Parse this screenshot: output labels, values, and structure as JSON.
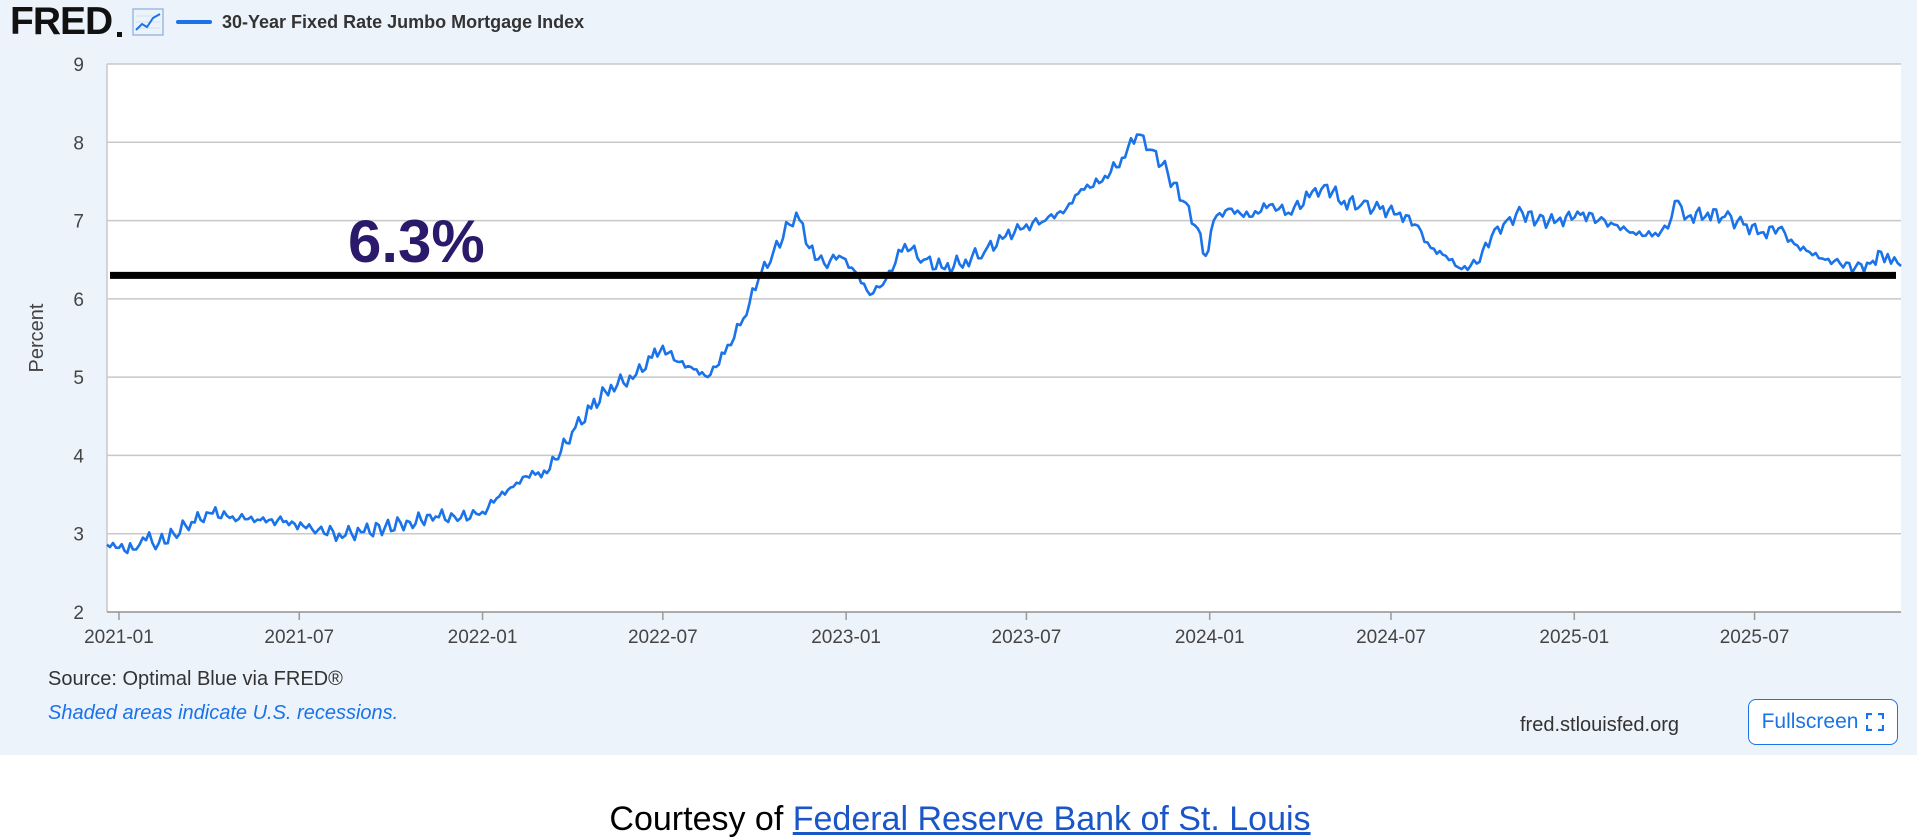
{
  "header": {
    "logo_text": "FRED",
    "series_label": "30-Year Fixed Rate Jumbo Mortgage Index",
    "series_color": "#1a73e8"
  },
  "annotation": {
    "label": "6.3%",
    "label_color": "#2b1a6b",
    "line_color": "#000000",
    "value": 6.3
  },
  "footer": {
    "source": "Source: Optimal Blue via FRED®",
    "recession_note": "Shaded areas indicate U.S. recessions.",
    "url": "fred.stlouisfed.org",
    "fullscreen_label": "Fullscreen"
  },
  "courtesy": {
    "prefix": "Courtesy of ",
    "link_text": "Federal Reserve Bank of St. Louis"
  },
  "chart_data": {
    "type": "line",
    "title": "",
    "ylabel": "Percent",
    "ylim": [
      2,
      9
    ],
    "yticks": [
      2,
      3,
      4,
      5,
      6,
      7,
      8,
      9
    ],
    "xlim": [
      "2020-12-20",
      "2025-11-25"
    ],
    "xticks": [
      "2021-01",
      "2021-07",
      "2022-01",
      "2022-07",
      "2023-01",
      "2023-07",
      "2024-01",
      "2024-07",
      "2025-01",
      "2025-07"
    ],
    "grid": true,
    "series": [
      {
        "name": "30-Year Fixed Rate Jumbo Mortgage Index",
        "color": "#1a73e8",
        "points": [
          [
            "2020-12-20",
            2.86
          ],
          [
            "2021-01-01",
            2.82
          ],
          [
            "2021-01-15",
            2.8
          ],
          [
            "2021-01-25",
            2.95
          ],
          [
            "2021-02-10",
            2.88
          ],
          [
            "2021-02-25",
            3.0
          ],
          [
            "2021-03-15",
            3.15
          ],
          [
            "2021-04-05",
            3.26
          ],
          [
            "2021-04-25",
            3.22
          ],
          [
            "2021-05-20",
            3.18
          ],
          [
            "2021-06-15",
            3.15
          ],
          [
            "2021-07-05",
            3.1
          ],
          [
            "2021-07-20",
            3.05
          ],
          [
            "2021-08-10",
            3.0
          ],
          [
            "2021-09-01",
            3.02
          ],
          [
            "2021-09-25",
            3.08
          ],
          [
            "2021-10-20",
            3.15
          ],
          [
            "2021-11-15",
            3.22
          ],
          [
            "2021-12-10",
            3.2
          ],
          [
            "2022-01-01",
            3.28
          ],
          [
            "2022-01-15",
            3.45
          ],
          [
            "2022-02-01",
            3.6
          ],
          [
            "2022-02-20",
            3.8
          ],
          [
            "2022-03-01",
            3.72
          ],
          [
            "2022-03-15",
            3.95
          ],
          [
            "2022-04-01",
            4.3
          ],
          [
            "2022-04-20",
            4.6
          ],
          [
            "2022-05-10",
            4.9
          ],
          [
            "2022-06-01",
            4.98
          ],
          [
            "2022-06-20",
            5.25
          ],
          [
            "2022-07-01",
            5.4
          ],
          [
            "2022-07-15",
            5.2
          ],
          [
            "2022-08-01",
            5.1
          ],
          [
            "2022-08-15",
            5.0
          ],
          [
            "2022-09-01",
            5.3
          ],
          [
            "2022-09-20",
            5.75
          ],
          [
            "2022-10-05",
            6.25
          ],
          [
            "2022-10-20",
            6.6
          ],
          [
            "2022-11-05",
            6.95
          ],
          [
            "2022-11-12",
            7.1
          ],
          [
            "2022-11-25",
            6.65
          ],
          [
            "2022-12-10",
            6.45
          ],
          [
            "2022-12-25",
            6.55
          ],
          [
            "2023-01-10",
            6.35
          ],
          [
            "2023-01-25",
            6.05
          ],
          [
            "2023-02-10",
            6.25
          ],
          [
            "2023-03-01",
            6.7
          ],
          [
            "2023-03-20",
            6.5
          ],
          [
            "2023-04-10",
            6.38
          ],
          [
            "2023-05-01",
            6.5
          ],
          [
            "2023-05-20",
            6.6
          ],
          [
            "2023-06-10",
            6.8
          ],
          [
            "2023-07-01",
            6.95
          ],
          [
            "2023-07-20",
            7.0
          ],
          [
            "2023-08-10",
            7.15
          ],
          [
            "2023-08-25",
            7.4
          ],
          [
            "2023-09-15",
            7.5
          ],
          [
            "2023-10-05",
            7.8
          ],
          [
            "2023-10-20",
            8.1
          ],
          [
            "2023-11-05",
            7.9
          ],
          [
            "2023-11-20",
            7.6
          ],
          [
            "2023-12-05",
            7.25
          ],
          [
            "2023-12-20",
            6.9
          ],
          [
            "2023-12-28",
            6.55
          ],
          [
            "2024-01-05",
            7.0
          ],
          [
            "2024-01-20",
            7.15
          ],
          [
            "2024-02-10",
            7.05
          ],
          [
            "2024-03-01",
            7.2
          ],
          [
            "2024-03-20",
            7.1
          ],
          [
            "2024-04-10",
            7.3
          ],
          [
            "2024-04-25",
            7.45
          ],
          [
            "2024-05-15",
            7.25
          ],
          [
            "2024-06-01",
            7.2
          ],
          [
            "2024-06-20",
            7.15
          ],
          [
            "2024-07-10",
            7.1
          ],
          [
            "2024-07-25",
            6.95
          ],
          [
            "2024-08-10",
            6.65
          ],
          [
            "2024-08-25",
            6.55
          ],
          [
            "2024-09-10",
            6.38
          ],
          [
            "2024-09-25",
            6.45
          ],
          [
            "2024-10-10",
            6.8
          ],
          [
            "2024-10-25",
            7.0
          ],
          [
            "2024-11-10",
            7.1
          ],
          [
            "2024-11-25",
            7.0
          ],
          [
            "2024-12-15",
            7.0
          ],
          [
            "2025-01-10",
            7.1
          ],
          [
            "2025-01-25",
            7.0
          ],
          [
            "2025-02-10",
            6.95
          ],
          [
            "2025-03-01",
            6.85
          ],
          [
            "2025-03-20",
            6.8
          ],
          [
            "2025-04-05",
            6.9
          ],
          [
            "2025-04-12",
            7.25
          ],
          [
            "2025-04-25",
            7.05
          ],
          [
            "2025-05-15",
            7.1
          ],
          [
            "2025-06-01",
            7.05
          ],
          [
            "2025-06-20",
            6.95
          ],
          [
            "2025-07-10",
            6.85
          ],
          [
            "2025-07-25",
            6.9
          ],
          [
            "2025-08-10",
            6.7
          ],
          [
            "2025-08-25",
            6.6
          ],
          [
            "2025-09-10",
            6.5
          ],
          [
            "2025-09-25",
            6.45
          ],
          [
            "2025-10-10",
            6.4
          ],
          [
            "2025-10-25",
            6.45
          ],
          [
            "2025-11-05",
            6.6
          ],
          [
            "2025-11-15",
            6.45
          ],
          [
            "2025-11-25",
            6.42
          ]
        ]
      }
    ]
  }
}
